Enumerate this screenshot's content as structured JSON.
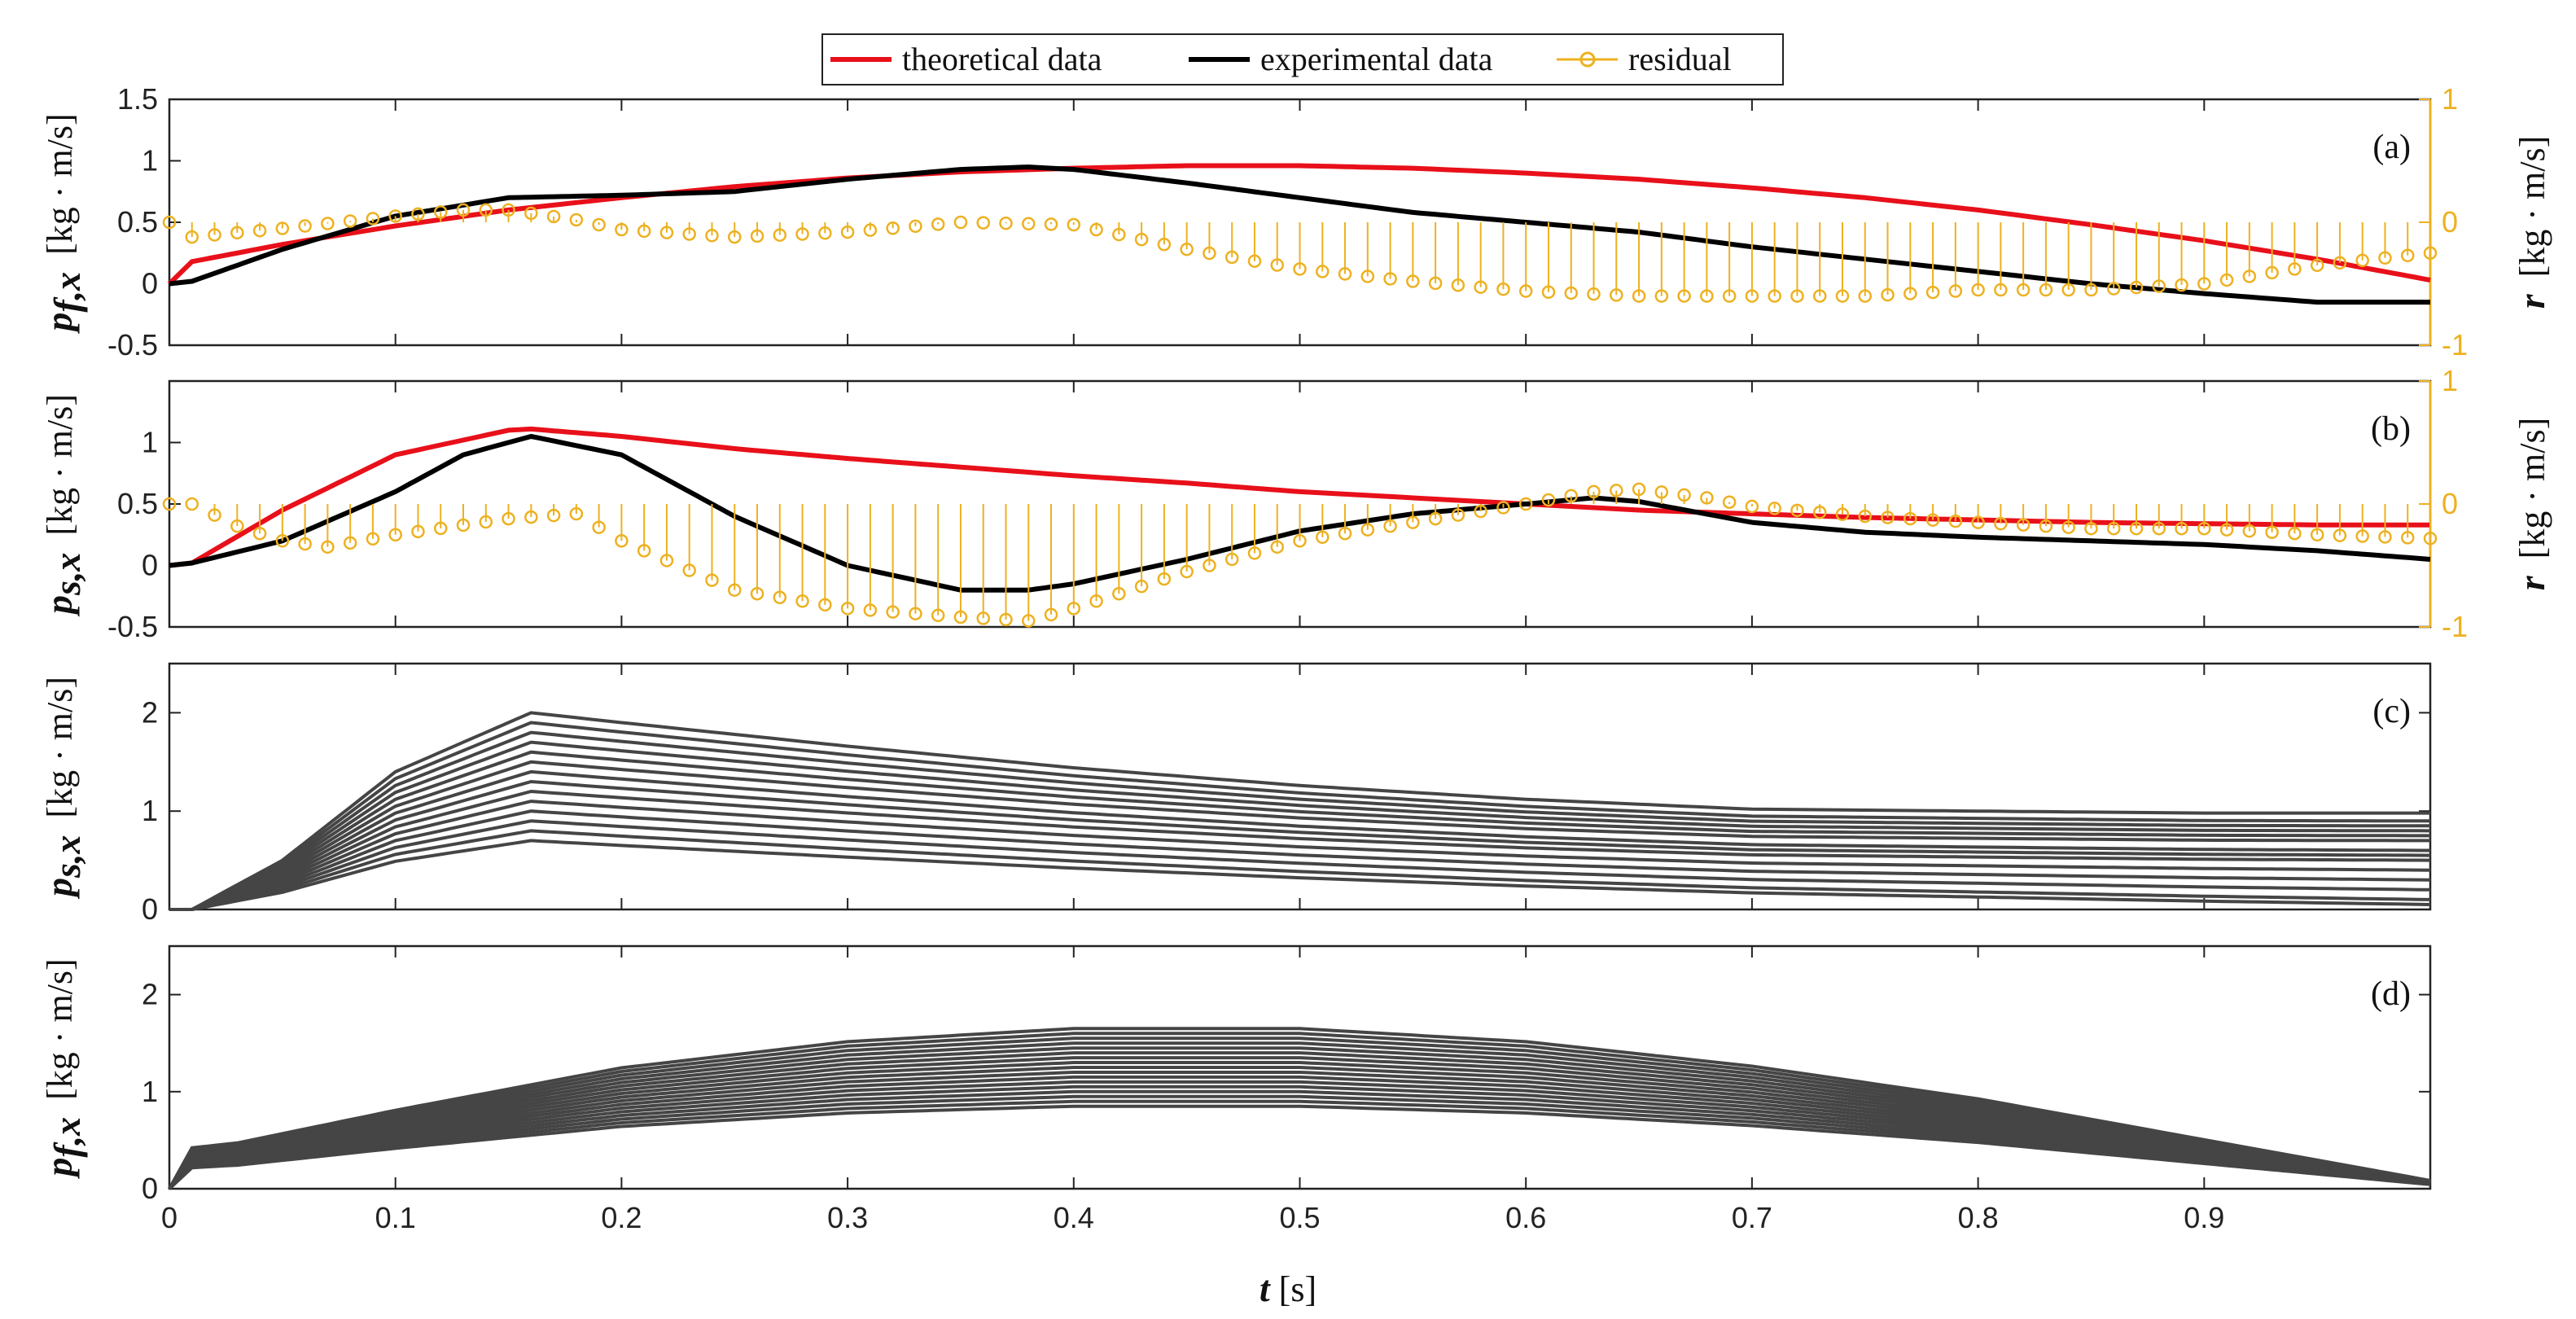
{
  "legend": {
    "theoretical": "theoretical data",
    "experimental": "experimental data",
    "residual": "residual"
  },
  "colors": {
    "theoretical": "#e8101a",
    "experimental": "#000000",
    "residual": "#edb120",
    "family": "#454545"
  },
  "xaxis": {
    "label_var": "t",
    "label_unit": " [s]",
    "ticks": [
      "0",
      "0.1",
      "0.2",
      "0.3",
      "0.4",
      "0.5",
      "0.6",
      "0.7",
      "0.8",
      "0.9"
    ]
  },
  "chart_data": [
    {
      "type": "line",
      "panel": "(a)",
      "ylabel_var": "p",
      "ylabel_sub": "f,x",
      "ylabel_unit": "[kg · m/s]",
      "ylim": [
        -0.5,
        1.5
      ],
      "yticks": [
        "-0.5",
        "0",
        "0.5",
        "1",
        "1.5"
      ],
      "y2label_var": "r",
      "y2label_unit": "[kg · m/s]",
      "y2lim": [
        -1,
        1
      ],
      "y2ticks": [
        "-1",
        "0",
        "1"
      ],
      "xlim": [
        0,
        1
      ],
      "series": [
        {
          "name": "theoretical data",
          "x": [
            0,
            0.01,
            0.05,
            0.1,
            0.15,
            0.2,
            0.25,
            0.3,
            0.35,
            0.4,
            0.45,
            0.5,
            0.55,
            0.6,
            0.65,
            0.7,
            0.75,
            0.8,
            0.85,
            0.9,
            0.95,
            1.0
          ],
          "y": [
            0,
            0.18,
            0.32,
            0.47,
            0.6,
            0.7,
            0.79,
            0.86,
            0.91,
            0.94,
            0.96,
            0.96,
            0.94,
            0.9,
            0.85,
            0.78,
            0.7,
            0.6,
            0.48,
            0.35,
            0.2,
            0.03
          ]
        },
        {
          "name": "experimental data",
          "x": [
            0,
            0.01,
            0.05,
            0.1,
            0.15,
            0.2,
            0.25,
            0.3,
            0.35,
            0.38,
            0.4,
            0.45,
            0.5,
            0.55,
            0.6,
            0.65,
            0.7,
            0.75,
            0.8,
            0.85,
            0.9,
            0.95,
            1.0
          ],
          "y": [
            0,
            0.02,
            0.28,
            0.55,
            0.7,
            0.72,
            0.75,
            0.85,
            0.93,
            0.95,
            0.93,
            0.82,
            0.7,
            0.58,
            0.5,
            0.42,
            0.3,
            0.2,
            0.1,
            0.0,
            -0.08,
            -0.15,
            -0.15
          ]
        },
        {
          "name": "residual",
          "x": [
            0,
            0.01,
            0.05,
            0.1,
            0.13,
            0.15,
            0.18,
            0.2,
            0.25,
            0.3,
            0.35,
            0.4,
            0.45,
            0.5,
            0.55,
            0.6,
            0.65,
            0.7,
            0.75,
            0.8,
            0.85,
            0.9,
            0.95,
            1.0
          ],
          "y": [
            0,
            -0.12,
            -0.05,
            0.05,
            0.1,
            0.1,
            0.02,
            -0.06,
            -0.12,
            -0.08,
            0.0,
            -0.02,
            -0.22,
            -0.38,
            -0.48,
            -0.56,
            -0.6,
            -0.6,
            -0.6,
            -0.55,
            -0.55,
            -0.5,
            -0.35,
            -0.25
          ]
        }
      ]
    },
    {
      "type": "line",
      "panel": "(b)",
      "ylabel_var": "p",
      "ylabel_sub": "s,x",
      "ylabel_unit": "[kg · m/s]",
      "ylim": [
        -0.5,
        1.5
      ],
      "yticks": [
        "-0.5",
        "0",
        "0.5",
        "1"
      ],
      "y2label_var": "r",
      "y2label_unit": "[kg · m/s]",
      "y2lim": [
        -1,
        1
      ],
      "y2ticks": [
        "-1",
        "0",
        "1"
      ],
      "xlim": [
        0,
        1
      ],
      "series": [
        {
          "name": "theoretical data",
          "x": [
            0,
            0.01,
            0.05,
            0.1,
            0.15,
            0.16,
            0.2,
            0.25,
            0.3,
            0.35,
            0.4,
            0.45,
            0.5,
            0.55,
            0.6,
            0.65,
            0.7,
            0.75,
            0.8,
            0.85,
            0.9,
            0.95,
            1.0
          ],
          "y": [
            0,
            0.02,
            0.45,
            0.9,
            1.1,
            1.11,
            1.05,
            0.95,
            0.87,
            0.8,
            0.73,
            0.67,
            0.6,
            0.55,
            0.5,
            0.45,
            0.42,
            0.39,
            0.37,
            0.35,
            0.34,
            0.33,
            0.33
          ]
        },
        {
          "name": "experimental data",
          "x": [
            0,
            0.01,
            0.05,
            0.1,
            0.13,
            0.16,
            0.2,
            0.25,
            0.3,
            0.35,
            0.38,
            0.4,
            0.45,
            0.5,
            0.55,
            0.6,
            0.63,
            0.65,
            0.7,
            0.75,
            0.8,
            0.85,
            0.9,
            0.95,
            1.0
          ],
          "y": [
            0,
            0.02,
            0.2,
            0.6,
            0.9,
            1.05,
            0.9,
            0.4,
            0.0,
            -0.2,
            -0.2,
            -0.15,
            0.05,
            0.28,
            0.42,
            0.5,
            0.55,
            0.52,
            0.35,
            0.27,
            0.23,
            0.2,
            0.17,
            0.12,
            0.05
          ]
        },
        {
          "name": "residual",
          "x": [
            0,
            0.01,
            0.03,
            0.05,
            0.07,
            0.1,
            0.15,
            0.18,
            0.2,
            0.25,
            0.3,
            0.35,
            0.38,
            0.4,
            0.45,
            0.5,
            0.55,
            0.6,
            0.63,
            0.65,
            0.68,
            0.7,
            0.75,
            0.8,
            0.85,
            0.9,
            0.95,
            1.0
          ],
          "y": [
            0,
            0.0,
            -0.18,
            -0.3,
            -0.35,
            -0.25,
            -0.12,
            -0.08,
            -0.3,
            -0.7,
            -0.85,
            -0.92,
            -0.95,
            -0.85,
            -0.55,
            -0.3,
            -0.15,
            0.0,
            0.1,
            0.12,
            0.05,
            -0.02,
            -0.1,
            -0.15,
            -0.2,
            -0.2,
            -0.25,
            -0.28
          ]
        }
      ]
    },
    {
      "type": "line",
      "panel": "(c)",
      "ylabel_var": "p",
      "ylabel_sub": "s,x",
      "ylabel_unit": "[kg · m/s]",
      "ylim": [
        0,
        2.5
      ],
      "yticks": [
        "0",
        "1",
        "2"
      ],
      "xlim": [
        0,
        1
      ],
      "family": {
        "x": [
          0,
          0.01,
          0.05,
          0.1,
          0.16,
          0.2,
          0.3,
          0.4,
          0.5,
          0.6,
          0.7,
          0.8,
          0.9,
          1.0
        ],
        "shape": [
          0,
          0.0,
          0.25,
          0.7,
          1.0,
          0.95,
          0.83,
          0.72,
          0.63,
          0.56,
          0.51,
          0.5,
          0.49,
          0.49
        ],
        "peaks": [
          0.7,
          0.8,
          0.9,
          1.0,
          1.1,
          1.2,
          1.3,
          1.4,
          1.5,
          1.6,
          1.7,
          1.8,
          1.9,
          2.0
        ],
        "tails": [
          0.05,
          0.1,
          0.2,
          0.3,
          0.4,
          0.5,
          0.55,
          0.6,
          0.7,
          0.75,
          0.8,
          0.85,
          0.9,
          0.98
        ]
      }
    },
    {
      "type": "line",
      "panel": "(d)",
      "ylabel_var": "p",
      "ylabel_sub": "f,x",
      "ylabel_unit": "[kg · m/s]",
      "ylim": [
        0,
        2.5
      ],
      "yticks": [
        "0",
        "1",
        "2"
      ],
      "xlim": [
        0,
        1
      ],
      "family": {
        "x": [
          0,
          0.01,
          0.03,
          0.1,
          0.2,
          0.3,
          0.4,
          0.5,
          0.6,
          0.7,
          0.8,
          0.9,
          1.0
        ],
        "shape": [
          0,
          0.25,
          0.28,
          0.48,
          0.74,
          0.9,
          0.98,
          0.98,
          0.9,
          0.75,
          0.55,
          0.3,
          0.05
        ],
        "peaks": [
          0.85,
          0.9,
          0.95,
          1.0,
          1.05,
          1.1,
          1.15,
          1.2,
          1.25,
          1.3,
          1.35,
          1.4,
          1.45,
          1.5,
          1.55,
          1.6,
          1.65
        ],
        "tails": []
      }
    }
  ]
}
